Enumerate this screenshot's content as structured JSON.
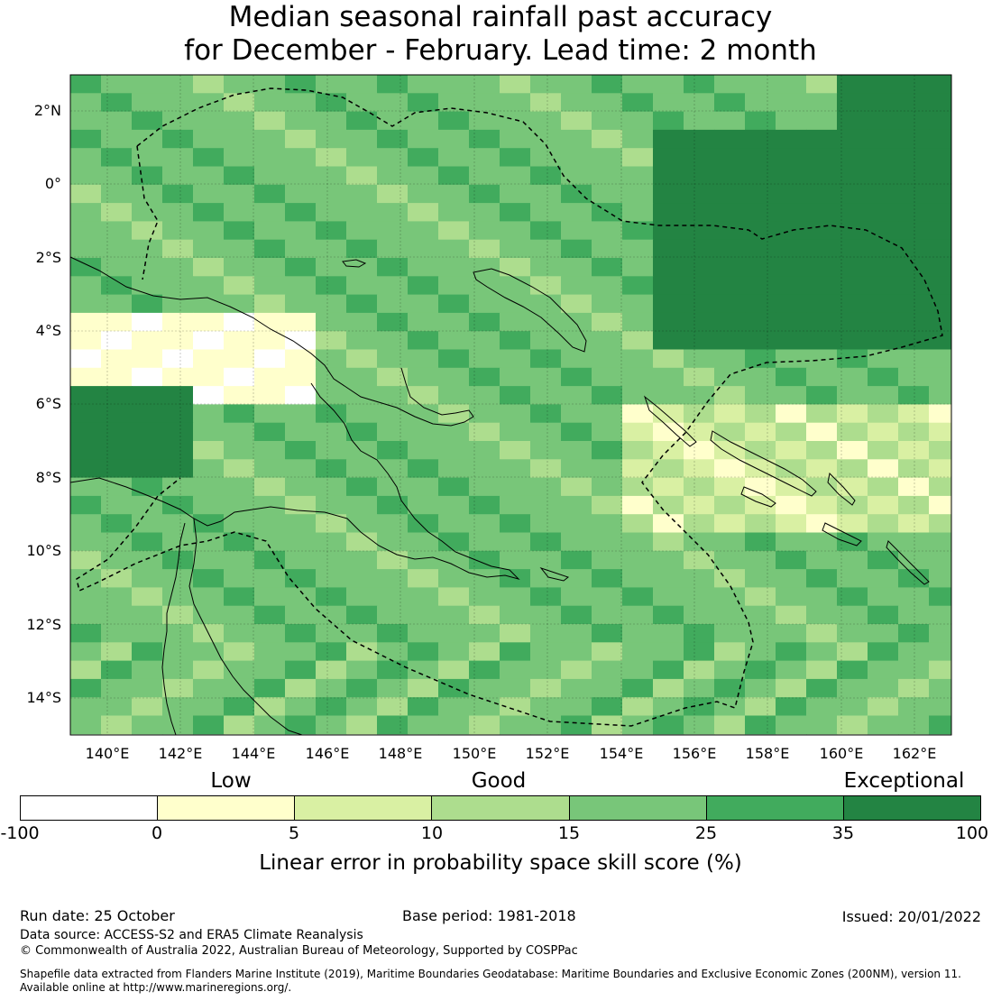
{
  "title": {
    "line1": "Median seasonal rainfall past accuracy",
    "line2": "for December - February. Lead time: 2 month"
  },
  "map": {
    "lon_ticks": [
      "140°E",
      "142°E",
      "144°E",
      "146°E",
      "148°E",
      "150°E",
      "152°E",
      "154°E",
      "156°E",
      "158°E",
      "160°E",
      "162°E"
    ],
    "lat_ticks": [
      "2°N",
      "0°",
      "2°S",
      "4°S",
      "6°S",
      "8°S",
      "10°S",
      "12°S",
      "14°S"
    ],
    "lon_range": [
      139,
      163
    ],
    "lat_range": [
      -15,
      3
    ]
  },
  "colorbar": {
    "categories": [
      "Low",
      "Good",
      "Exceptional"
    ],
    "tick_labels": [
      "-100",
      "0",
      "5",
      "10",
      "15",
      "25",
      "35",
      "100"
    ],
    "colors": [
      "#ffffff",
      "#ffffcc",
      "#d9f0a3",
      "#addd8e",
      "#78c679",
      "#41ab5d",
      "#238443"
    ],
    "label": "Linear error in probability space skill score (%)"
  },
  "footer": {
    "run_date": "Run date: 25 October",
    "base_period": "Base period: 1981-2018",
    "issued": "Issued: 20/01/2022",
    "data_source": "Data source: ACCESS-S2 and ERA5 Climate Reanalysis",
    "copyright": "© Commonwealth of Australia 2022, Australian Bureau of Meteorology, Supported by COSPPac",
    "shapefile_line1": "Shapefile data extracted from Flanders Marine Institute (2019), Maritime Boundaries Geodatabase: Maritime Boundaries and Exclusive Economic Zones (200NM), version 11.",
    "shapefile_line2": "Available online at http://www.marineregions.org/."
  }
}
